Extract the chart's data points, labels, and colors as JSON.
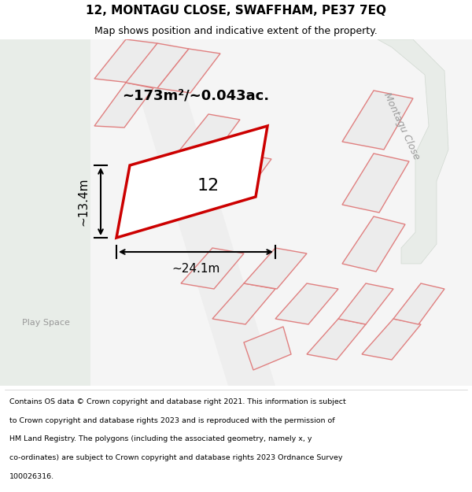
{
  "title": "12, MONTAGU CLOSE, SWAFFHAM, PE37 7EQ",
  "subtitle": "Map shows position and indicative extent of the property.",
  "footer_lines": [
    "Contains OS data © Crown copyright and database right 2021. This information is subject",
    "to Crown copyright and database rights 2023 and is reproduced with the permission of",
    "HM Land Registry. The polygons (including the associated geometry, namely x, y",
    "co-ordinates) are subject to Crown copyright and database rights 2023 Ordnance Survey",
    "100026316."
  ],
  "area_label": "~173m²/~0.043ac.",
  "width_label": "~24.1m",
  "height_label": "~13.4m",
  "property_number": "12",
  "road_label": "Montagu Close",
  "play_space_label": "Play Space",
  "map_bg": "#f5f5f5",
  "left_bg": "#e8ede8",
  "highlight_color": "#cc0000",
  "line_color": "#e87070",
  "border_color": "#e08080",
  "plot_fc": "#ececec"
}
